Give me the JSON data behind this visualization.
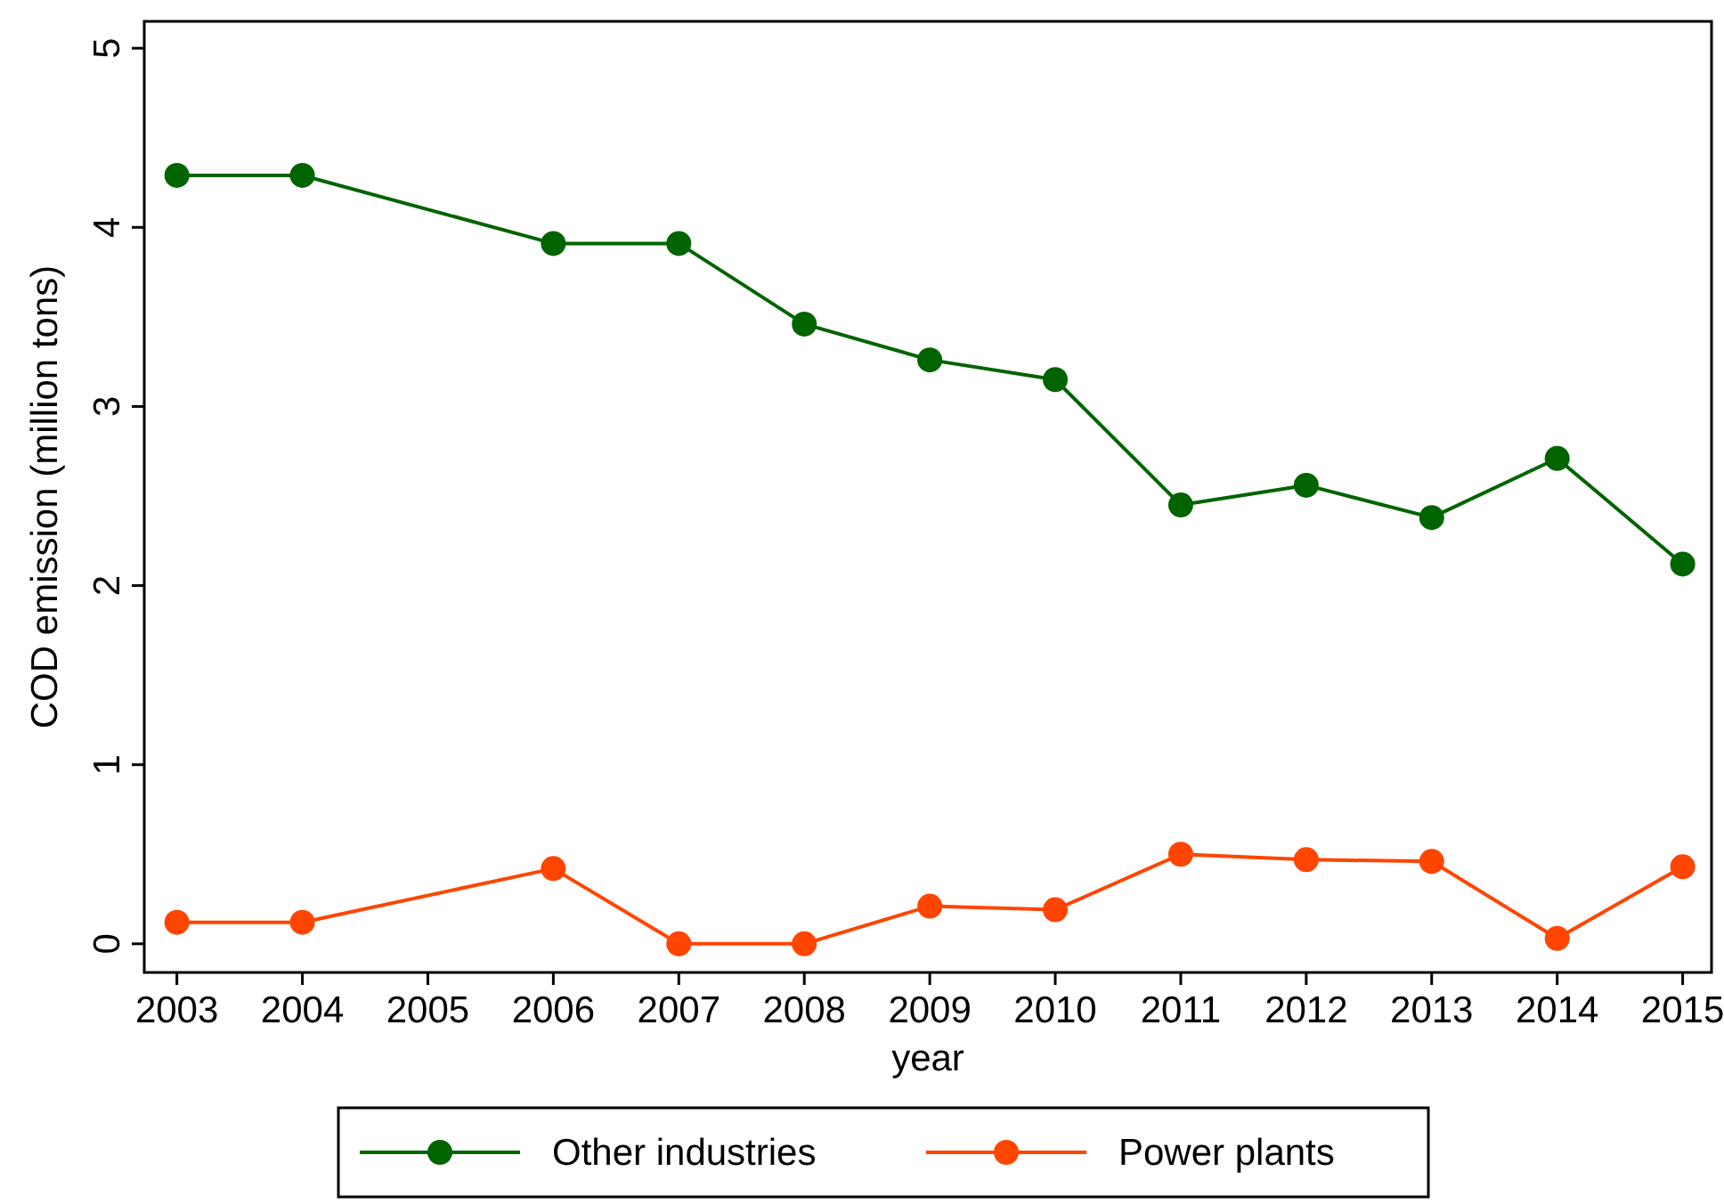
{
  "chart_data": {
    "type": "line",
    "xlabel": "year",
    "ylabel": "COD emission (million tons)",
    "x": [
      2003,
      2004,
      2006,
      2007,
      2008,
      2009,
      2010,
      2011,
      2012,
      2013,
      2014,
      2015
    ],
    "series": [
      {
        "name": "Other industries",
        "color": "#006400",
        "values": [
          4.29,
          4.29,
          3.91,
          3.91,
          3.46,
          3.26,
          3.15,
          2.45,
          2.56,
          2.38,
          2.71,
          2.12
        ]
      },
      {
        "name": "Power plants",
        "color": "#ff4500",
        "values": [
          0.12,
          0.12,
          0.42,
          0,
          0,
          0.21,
          0.19,
          0.5,
          0.47,
          0.46,
          0.03,
          0.43
        ]
      }
    ],
    "xlim": [
      2002.74,
      2015.23
    ],
    "xticks": [
      2003,
      2004,
      2005,
      2006,
      2007,
      2008,
      2009,
      2010,
      2011,
      2012,
      2013,
      2014,
      2015
    ],
    "ylim": [
      -0.16,
      5.15
    ],
    "yticks": [
      0,
      1,
      2,
      3,
      4,
      5
    ],
    "grid": false,
    "legend": "bottom",
    "marker": "circle",
    "line_style": "solid"
  }
}
